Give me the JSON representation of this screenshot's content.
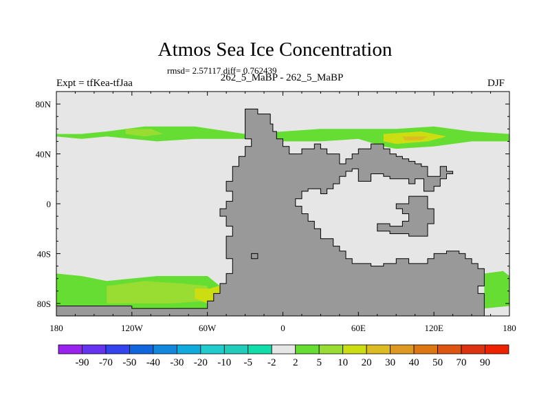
{
  "title": "Atmos Sea Ice Concentration",
  "subtitle": "rmsd= 2.57117 diff= 0.762439",
  "left_label": "Expt = tfKea-tfJaa",
  "center_label": "262_5_MaBP - 262_5_MaBP",
  "right_label": "DJF",
  "colors": {
    "background_field": "#e6e6e6",
    "land": "#999999",
    "frame": "#000000",
    "field_5": "#66dd33",
    "field_10": "#99dd33",
    "field_20": "#ccdd11",
    "field_30": "#ddbb22"
  },
  "chart_data": {
    "type": "heatmap",
    "projection": "cylindrical equidistant",
    "xlim": [
      -180,
      180
    ],
    "ylim": [
      -90,
      90
    ],
    "x_ticks": [
      {
        "value": -180,
        "label": "180"
      },
      {
        "value": -120,
        "label": "120W"
      },
      {
        "value": -60,
        "label": "60W"
      },
      {
        "value": 0,
        "label": "0"
      },
      {
        "value": 60,
        "label": "60E"
      },
      {
        "value": 120,
        "label": "120E"
      },
      {
        "value": 180,
        "label": "180"
      }
    ],
    "y_ticks": [
      {
        "value": 80,
        "label": "80N"
      },
      {
        "value": 40,
        "label": "40N"
      },
      {
        "value": 0,
        "label": "0"
      },
      {
        "value": -40,
        "label": "40S"
      },
      {
        "value": -80,
        "label": "80S"
      }
    ],
    "colorbar": {
      "levels": [
        "-90",
        "-70",
        "-50",
        "-40",
        "-30",
        "-20",
        "-10",
        "-5",
        "-2",
        "2",
        "5",
        "10",
        "20",
        "30",
        "40",
        "50",
        "70",
        "90"
      ],
      "colors": [
        "#9922ee",
        "#6633ee",
        "#3344ee",
        "#1166dd",
        "#1188dd",
        "#11aadd",
        "#22cccc",
        "#22ccbb",
        "#11ddaa",
        "#e6e6e6",
        "#66dd33",
        "#99dd33",
        "#ccdd11",
        "#ddbb22",
        "#dd9922",
        "#dd7711",
        "#dd5511",
        "#dd3311",
        "#ee2200"
      ]
    },
    "land_regions": [
      [
        [
          -30,
          76
        ],
        [
          -20,
          76
        ],
        [
          -20,
          72
        ],
        [
          -10,
          72
        ],
        [
          -10,
          64
        ],
        [
          -8,
          64
        ],
        [
          -8,
          58
        ],
        [
          -5,
          58
        ],
        [
          -5,
          52
        ],
        [
          0,
          52
        ],
        [
          0,
          46
        ],
        [
          5,
          46
        ],
        [
          5,
          40
        ],
        [
          15,
          40
        ],
        [
          15,
          44
        ],
        [
          25,
          44
        ],
        [
          25,
          48
        ],
        [
          30,
          48
        ],
        [
          30,
          44
        ],
        [
          35,
          44
        ],
        [
          35,
          40
        ],
        [
          45,
          40
        ],
        [
          45,
          32
        ],
        [
          50,
          32
        ],
        [
          50,
          36
        ],
        [
          55,
          36
        ],
        [
          55,
          40
        ],
        [
          60,
          40
        ],
        [
          60,
          44
        ],
        [
          70,
          44
        ],
        [
          70,
          48
        ],
        [
          80,
          48
        ],
        [
          80,
          44
        ],
        [
          85,
          44
        ],
        [
          85,
          40
        ],
        [
          90,
          40
        ],
        [
          90,
          38
        ],
        [
          95,
          38
        ],
        [
          95,
          36
        ],
        [
          100,
          36
        ],
        [
          100,
          34
        ],
        [
          105,
          34
        ],
        [
          105,
          32
        ],
        [
          110,
          32
        ],
        [
          110,
          30
        ],
        [
          115,
          30
        ],
        [
          115,
          22
        ],
        [
          125,
          22
        ],
        [
          125,
          30
        ],
        [
          130,
          30
        ],
        [
          130,
          26
        ],
        [
          135,
          26
        ],
        [
          135,
          24
        ],
        [
          130,
          24
        ],
        [
          130,
          20
        ],
        [
          125,
          20
        ],
        [
          125,
          14
        ],
        [
          120,
          14
        ],
        [
          120,
          10
        ],
        [
          112,
          10
        ],
        [
          112,
          20
        ],
        [
          105,
          20
        ],
        [
          105,
          16
        ],
        [
          100,
          16
        ],
        [
          100,
          20
        ],
        [
          85,
          20
        ],
        [
          85,
          22
        ],
        [
          80,
          22
        ],
        [
          80,
          24
        ],
        [
          70,
          24
        ],
        [
          70,
          18
        ],
        [
          60,
          18
        ],
        [
          60,
          28
        ],
        [
          55,
          28
        ],
        [
          55,
          26
        ],
        [
          50,
          26
        ],
        [
          50,
          22
        ],
        [
          45,
          22
        ],
        [
          45,
          16
        ],
        [
          40,
          16
        ],
        [
          40,
          12
        ],
        [
          35,
          12
        ],
        [
          35,
          8
        ],
        [
          30,
          8
        ],
        [
          30,
          12
        ],
        [
          20,
          12
        ],
        [
          20,
          10
        ],
        [
          15,
          10
        ],
        [
          15,
          4
        ],
        [
          10,
          4
        ],
        [
          10,
          -2
        ],
        [
          15,
          -2
        ],
        [
          15,
          -8
        ],
        [
          20,
          -8
        ],
        [
          20,
          -14
        ],
        [
          25,
          -14
        ],
        [
          25,
          -20
        ],
        [
          30,
          -20
        ],
        [
          30,
          -28
        ],
        [
          40,
          -28
        ],
        [
          40,
          -34
        ],
        [
          45,
          -34
        ],
        [
          45,
          -38
        ],
        [
          50,
          -38
        ],
        [
          50,
          -44
        ],
        [
          55,
          -44
        ],
        [
          55,
          -48
        ],
        [
          70,
          -48
        ],
        [
          70,
          -50
        ],
        [
          80,
          -50
        ],
        [
          80,
          -48
        ],
        [
          90,
          -48
        ],
        [
          90,
          -44
        ],
        [
          100,
          -44
        ],
        [
          100,
          -48
        ],
        [
          115,
          -48
        ],
        [
          115,
          -44
        ],
        [
          120,
          -44
        ],
        [
          120,
          -40
        ],
        [
          130,
          -40
        ],
        [
          130,
          -38
        ],
        [
          140,
          -38
        ],
        [
          140,
          -40
        ],
        [
          145,
          -40
        ],
        [
          145,
          -44
        ],
        [
          150,
          -44
        ],
        [
          150,
          -48
        ],
        [
          155,
          -48
        ],
        [
          155,
          -52
        ],
        [
          160,
          -52
        ],
        [
          160,
          -66
        ],
        [
          155,
          -66
        ],
        [
          155,
          -72
        ],
        [
          160,
          -72
        ],
        [
          160,
          -90
        ],
        [
          -180,
          -90
        ],
        [
          -180,
          -82
        ],
        [
          -120,
          -82
        ],
        [
          -120,
          -84
        ],
        [
          -60,
          -84
        ],
        [
          -60,
          -78
        ],
        [
          -55,
          -78
        ],
        [
          -55,
          -72
        ],
        [
          -50,
          -72
        ],
        [
          -50,
          -64
        ],
        [
          -45,
          -64
        ],
        [
          -45,
          -56
        ],
        [
          -40,
          -56
        ],
        [
          -40,
          -44
        ],
        [
          -45,
          -44
        ],
        [
          -45,
          -26
        ],
        [
          -40,
          -26
        ],
        [
          -40,
          -18
        ],
        [
          -45,
          -18
        ],
        [
          -45,
          -10
        ],
        [
          -50,
          -10
        ],
        [
          -50,
          -4
        ],
        [
          -45,
          -4
        ],
        [
          -45,
          2
        ],
        [
          -40,
          2
        ],
        [
          -40,
          10
        ],
        [
          -45,
          10
        ],
        [
          -45,
          18
        ],
        [
          -40,
          18
        ],
        [
          -40,
          30
        ],
        [
          -35,
          30
        ],
        [
          -35,
          38
        ],
        [
          -30,
          38
        ],
        [
          -30,
          46
        ],
        [
          -25,
          46
        ],
        [
          -25,
          52
        ],
        [
          -30,
          52
        ],
        [
          -30,
          76
        ]
      ],
      [
        [
          90,
          0
        ],
        [
          100,
          0
        ],
        [
          100,
          6
        ],
        [
          115,
          6
        ],
        [
          115,
          -4
        ],
        [
          120,
          -4
        ],
        [
          120,
          -16
        ],
        [
          115,
          -16
        ],
        [
          115,
          -26
        ],
        [
          100,
          -26
        ],
        [
          100,
          -24
        ],
        [
          85,
          -24
        ],
        [
          85,
          -22
        ],
        [
          75,
          -22
        ],
        [
          75,
          -16
        ],
        [
          85,
          -16
        ],
        [
          85,
          -18
        ],
        [
          95,
          -18
        ],
        [
          95,
          -14
        ],
        [
          100,
          -14
        ],
        [
          100,
          -8
        ],
        [
          95,
          -8
        ],
        [
          95,
          -4
        ],
        [
          90,
          -4
        ],
        [
          90,
          0
        ]
      ],
      [
        [
          -25,
          -40
        ],
        [
          -20,
          -40
        ],
        [
          -20,
          -44
        ],
        [
          -25,
          -44
        ],
        [
          -25,
          -40
        ]
      ]
    ],
    "ice_bands": [
      {
        "level": "5",
        "color": "#66dd33",
        "polygon": [
          [
            -180,
            56
          ],
          [
            -160,
            56
          ],
          [
            -140,
            58
          ],
          [
            -110,
            62
          ],
          [
            -70,
            62
          ],
          [
            -30,
            56
          ],
          [
            0,
            58
          ],
          [
            30,
            60
          ],
          [
            60,
            60
          ],
          [
            90,
            60
          ],
          [
            120,
            62
          ],
          [
            150,
            58
          ],
          [
            180,
            56
          ],
          [
            180,
            50
          ],
          [
            150,
            50
          ],
          [
            120,
            46
          ],
          [
            90,
            44
          ],
          [
            80,
            46
          ],
          [
            60,
            52
          ],
          [
            30,
            50
          ],
          [
            0,
            50
          ],
          [
            -30,
            52
          ],
          [
            -70,
            52
          ],
          [
            -100,
            50
          ],
          [
            -140,
            54
          ],
          [
            -160,
            52
          ],
          [
            -180,
            54
          ]
        ]
      },
      {
        "level": "10",
        "color": "#99dd33",
        "polygon": [
          [
            -125,
            60
          ],
          [
            -105,
            60
          ],
          [
            -95,
            56
          ],
          [
            -110,
            54
          ],
          [
            -125,
            56
          ]
        ]
      },
      {
        "level": "20",
        "color": "#ccdd11",
        "polygon": [
          [
            80,
            56
          ],
          [
            110,
            58
          ],
          [
            130,
            54
          ],
          [
            115,
            50
          ],
          [
            90,
            48
          ],
          [
            80,
            50
          ]
        ]
      },
      {
        "level": "30",
        "color": "#ddbb22",
        "polygon": [
          [
            95,
            54
          ],
          [
            115,
            54
          ],
          [
            110,
            51
          ],
          [
            97,
            51
          ]
        ]
      },
      {
        "level": "5",
        "color": "#66dd33",
        "polygon": [
          [
            -180,
            -56
          ],
          [
            -160,
            -58
          ],
          [
            -140,
            -62
          ],
          [
            -100,
            -58
          ],
          [
            -60,
            -58
          ],
          [
            -50,
            -66
          ],
          [
            -30,
            -58
          ],
          [
            0,
            -68
          ],
          [
            20,
            -74
          ],
          [
            40,
            -76
          ],
          [
            55,
            -78
          ],
          [
            55,
            -84
          ],
          [
            -60,
            -84
          ],
          [
            -120,
            -84
          ],
          [
            -180,
            -82
          ]
        ]
      },
      {
        "level": "10",
        "color": "#99dd33",
        "polygon": [
          [
            -140,
            -66
          ],
          [
            -110,
            -62
          ],
          [
            -80,
            -64
          ],
          [
            -60,
            -66
          ],
          [
            -60,
            -78
          ],
          [
            -90,
            -80
          ],
          [
            -140,
            -80
          ]
        ]
      },
      {
        "level": "20",
        "color": "#ccdd11",
        "polygon": [
          [
            -70,
            -68
          ],
          [
            -58,
            -68
          ],
          [
            -45,
            -64
          ],
          [
            -30,
            -58
          ],
          [
            -10,
            -66
          ],
          [
            -5,
            -78
          ],
          [
            -30,
            -80
          ],
          [
            -60,
            -80
          ],
          [
            -70,
            -76
          ]
        ]
      },
      {
        "level": "30",
        "color": "#ddbb22",
        "polygon": [
          [
            -30,
            -60
          ],
          [
            -20,
            -64
          ],
          [
            -25,
            -70
          ],
          [
            -33,
            -66
          ]
        ]
      },
      {
        "level": "5",
        "color": "#66dd33",
        "polygon": [
          [
            160,
            -56
          ],
          [
            175,
            -54
          ],
          [
            180,
            -58
          ],
          [
            180,
            -82
          ],
          [
            160,
            -84
          ],
          [
            160,
            -66
          ]
        ]
      }
    ]
  }
}
